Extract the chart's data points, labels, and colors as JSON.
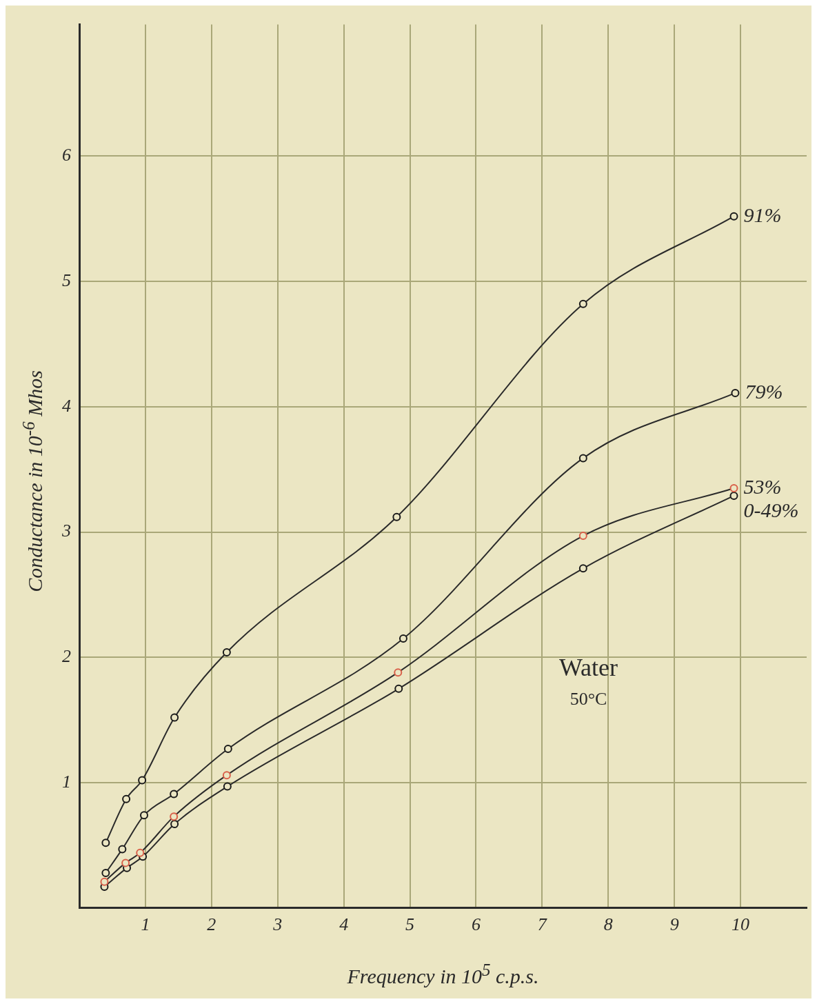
{
  "chart_data": {
    "type": "line",
    "xlabel": "Frequency in 10$^{5}$ c.p.s.",
    "ylabel": "Conductance in 10$^{-6}$ Mhos",
    "xlim": [
      0,
      11
    ],
    "ylim": [
      0,
      7.05
    ],
    "xticks": [
      1,
      2,
      3,
      4,
      5,
      6,
      7,
      8,
      9,
      10
    ],
    "yticks": [
      1,
      2,
      3,
      4,
      5,
      6
    ],
    "grid": true,
    "legend": false,
    "marker": "circle",
    "annotations": [
      "Water",
      "50°C"
    ],
    "series": [
      {
        "name": "91%",
        "color": "#1a1a1a",
        "x": [
          0.4,
          0.71,
          0.95,
          1.44,
          2.23,
          4.8,
          7.62,
          9.9
        ],
        "values": [
          0.52,
          0.87,
          1.02,
          1.52,
          2.04,
          3.12,
          4.82,
          5.52
        ]
      },
      {
        "name": "79%",
        "color": "#1a1a1a",
        "x": [
          0.4,
          0.65,
          0.98,
          1.43,
          2.25,
          4.9,
          7.62,
          9.92
        ],
        "values": [
          0.28,
          0.47,
          0.74,
          0.91,
          1.27,
          2.15,
          3.59,
          4.11
        ]
      },
      {
        "name": "53%",
        "color": "#d9604a",
        "x": [
          0.38,
          0.7,
          0.92,
          1.43,
          2.23,
          4.82,
          7.62,
          9.9
        ],
        "values": [
          0.21,
          0.36,
          0.44,
          0.73,
          1.06,
          1.88,
          2.97,
          3.35
        ]
      },
      {
        "name": "0-49%",
        "color": "#1a1a1a",
        "x": [
          0.38,
          0.72,
          0.96,
          1.44,
          2.24,
          4.83,
          7.62,
          9.9
        ],
        "values": [
          0.17,
          0.32,
          0.41,
          0.67,
          0.97,
          1.75,
          2.71,
          3.29
        ]
      }
    ]
  }
}
